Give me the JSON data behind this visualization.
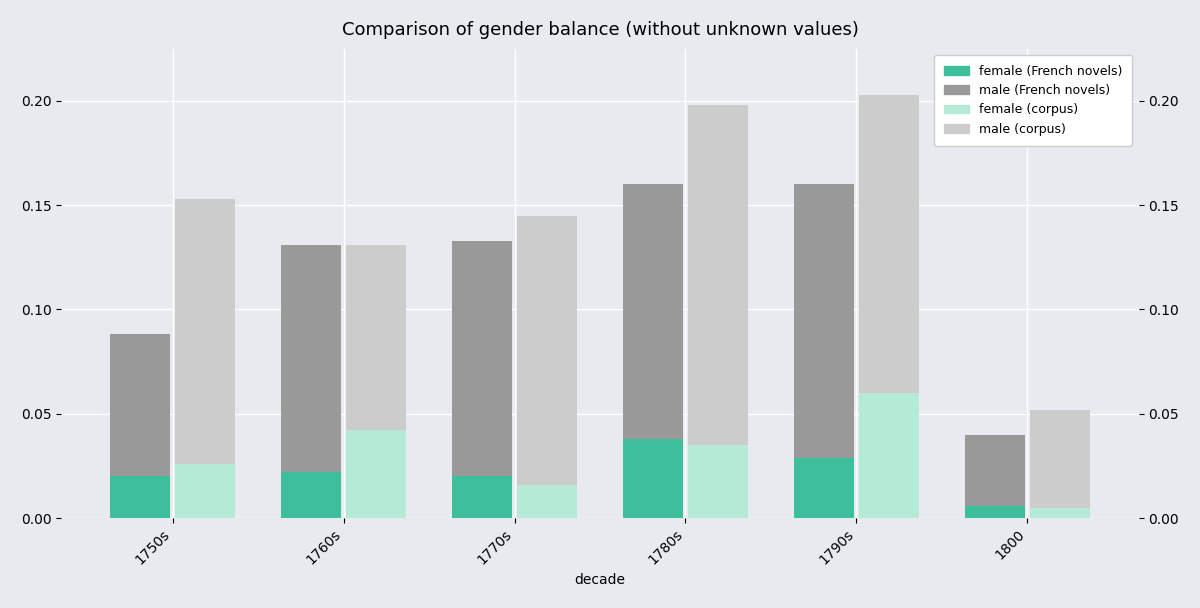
{
  "title": "Comparison of gender balance (without unknown values)",
  "xlabel": "decade",
  "background_color": "#e8eaf0",
  "categories": [
    "1750s",
    "1760s",
    "1770s",
    "1780s",
    "1790s",
    "1800"
  ],
  "female_novels": [
    0.02,
    0.022,
    0.02,
    0.038,
    0.029,
    0.006
  ],
  "male_novels": [
    0.068,
    0.109,
    0.113,
    0.122,
    0.131,
    0.034
  ],
  "female_corpus": [
    0.026,
    0.042,
    0.016,
    0.035,
    0.06,
    0.005
  ],
  "male_corpus": [
    0.127,
    0.089,
    0.129,
    0.163,
    0.143,
    0.047
  ],
  "color_female_novels": "#3dbf9b",
  "color_male_novels": "#999999",
  "color_female_corpus": "#b5ead7",
  "color_male_corpus": "#cccccc",
  "ylim": [
    0,
    0.225
  ],
  "yticks": [
    0.0,
    0.05,
    0.1,
    0.15,
    0.2
  ],
  "bar_width": 0.35,
  "title_fontsize": 13,
  "legend_labels": [
    "female (French novels)",
    "male (French novels)",
    "female (corpus)",
    "male (corpus)"
  ]
}
